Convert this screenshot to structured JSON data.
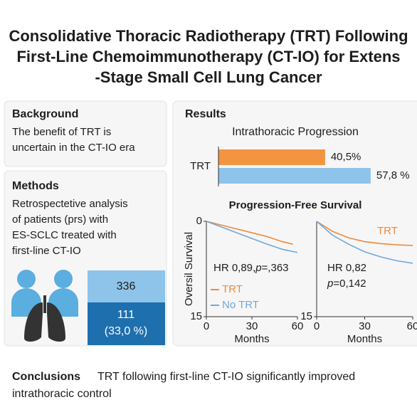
{
  "header": {
    "title_lines": [
      "Consolidative Thoracic Radiotherapy (TRT) Following",
      "First-Line Chemoimmunotherapy (CT-IO) for Extens",
      "-Stage Small Cell Lung Cancer"
    ]
  },
  "background": {
    "heading": "Background",
    "lines": [
      "The benefit of TRT is",
      "uncertain in the CT-IO era"
    ]
  },
  "methods": {
    "heading": "Methods",
    "lines": [
      "Retrospectetive analysis",
      "of patients (prs) with",
      "ES-SCLC treated with",
      "first-line CT-IO"
    ],
    "total": "336",
    "subgroup": "111",
    "subgroup_pct": "(33,0 %)"
  },
  "results": {
    "heading": "Results",
    "km_title": "Progression-Free Survival"
  },
  "conclusions": {
    "heading": "Conclusions",
    "lines": [
      "TRT following first-line CT-IO significantly improved",
      "intrathoracic control"
    ]
  },
  "chart_data": [
    {
      "type": "hbar",
      "title": "Intrathoracic Progression",
      "group_label": "TRT",
      "values": [
        40.5,
        57.8
      ],
      "value_labels": [
        "40,5%",
        "57,8 %"
      ],
      "colors": [
        "#f39440",
        "#8ec3ea"
      ],
      "xlim": [
        0,
        70
      ]
    },
    {
      "type": "line",
      "ylabel": "Oversil Survival",
      "xlabel": "Months",
      "xlim": [
        0,
        60
      ],
      "ylim": [
        15,
        0
      ],
      "xticks": [
        0,
        30,
        60
      ],
      "yticks": [
        0,
        15
      ],
      "annotation": [
        "HR 0,89,",
        "p",
        "=,363"
      ],
      "legend": true,
      "series": [
        {
          "name": "TRT",
          "color": "#f08a3c",
          "x": [
            0,
            10,
            20,
            30,
            40,
            50,
            57
          ],
          "values": [
            0,
            0.6,
            1.2,
            1.8,
            2.4,
            3.2,
            3.6
          ]
        },
        {
          "name": "No TRT",
          "color": "#6fa8dc",
          "x": [
            0,
            10,
            20,
            30,
            40,
            50,
            60
          ],
          "values": [
            0,
            0.9,
            1.8,
            2.7,
            3.6,
            4.4,
            4.9
          ]
        }
      ]
    },
    {
      "type": "line",
      "xlabel": "Months",
      "xlim": [
        0,
        60
      ],
      "ylim": [
        15,
        0
      ],
      "xticks": [
        0,
        30,
        60
      ],
      "yticks": [
        15
      ],
      "annotation_lines": [
        [
          "HR 0,82"
        ],
        [
          "p",
          "=0,142"
        ]
      ],
      "curve_label": "TRT",
      "legend": false,
      "series": [
        {
          "color": "#f08a3c",
          "x": [
            0,
            10,
            20,
            30,
            40,
            50,
            60
          ],
          "values": [
            0,
            1.6,
            2.6,
            3.2,
            3.5,
            3.7,
            3.8
          ]
        },
        {
          "color": "#6fa8dc",
          "x": [
            0,
            10,
            20,
            30,
            40,
            50,
            60
          ],
          "values": [
            0,
            2.2,
            3.6,
            4.8,
            5.6,
            6.2,
            6.6
          ]
        }
      ]
    }
  ]
}
